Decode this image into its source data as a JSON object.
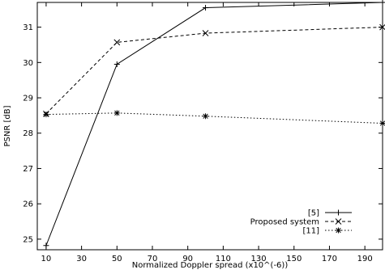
{
  "chart_data": {
    "type": "line",
    "title": "",
    "xlabel": "Normalized Doppler spread (x10^(-6))",
    "ylabel": "PSNR [dB]",
    "xlim": [
      5,
      200
    ],
    "ylim": [
      24.7,
      31.7
    ],
    "xticks": [
      10,
      30,
      50,
      70,
      90,
      110,
      130,
      150,
      170,
      190
    ],
    "yticks": [
      25,
      26,
      27,
      28,
      29,
      30,
      31
    ],
    "legend_position": "bottom-right",
    "grid": false,
    "series": [
      {
        "name": "[5]",
        "marker": "plus",
        "dash": "solid",
        "x": [
          10,
          50,
          100,
          200
        ],
        "y": [
          24.82,
          29.95,
          31.55,
          31.7
        ]
      },
      {
        "name": "Proposed system",
        "marker": "x",
        "dash": "dashed",
        "x": [
          10,
          50,
          100,
          200
        ],
        "y": [
          28.55,
          30.57,
          30.83,
          31.0
        ]
      },
      {
        "name": "[11]",
        "marker": "star",
        "dash": "dotted",
        "x": [
          10,
          50,
          100,
          200
        ],
        "y": [
          28.53,
          28.57,
          28.48,
          28.28
        ]
      }
    ]
  }
}
